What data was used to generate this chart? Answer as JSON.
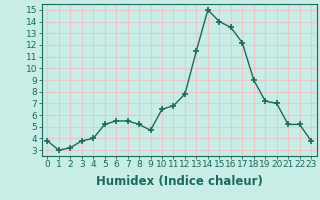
{
  "x": [
    0,
    1,
    2,
    3,
    4,
    5,
    6,
    7,
    8,
    9,
    10,
    11,
    12,
    13,
    14,
    15,
    16,
    17,
    18,
    19,
    20,
    21,
    22,
    23
  ],
  "y": [
    3.8,
    3.0,
    3.2,
    3.8,
    4.0,
    5.2,
    5.5,
    5.5,
    5.2,
    4.7,
    6.5,
    6.8,
    7.8,
    11.5,
    15.0,
    14.0,
    13.5,
    12.2,
    9.0,
    7.2,
    7.0,
    5.2,
    5.2,
    3.8
  ],
  "line_color": "#1a6b5a",
  "marker": "+",
  "markersize": 4,
  "linewidth": 1.0,
  "xlabel": "Humidex (Indice chaleur)",
  "xlim": [
    -0.5,
    23.5
  ],
  "ylim": [
    2.5,
    15.5
  ],
  "yticks": [
    3,
    4,
    5,
    6,
    7,
    8,
    9,
    10,
    11,
    12,
    13,
    14,
    15
  ],
  "xticks": [
    0,
    1,
    2,
    3,
    4,
    5,
    6,
    7,
    8,
    9,
    10,
    11,
    12,
    13,
    14,
    15,
    16,
    17,
    18,
    19,
    20,
    21,
    22,
    23
  ],
  "background_color": "#c8ece6",
  "grid_color": "#e8c8c8",
  "tick_fontsize": 6.5,
  "xlabel_fontsize": 8.5,
  "xlabel_fontweight": "bold"
}
